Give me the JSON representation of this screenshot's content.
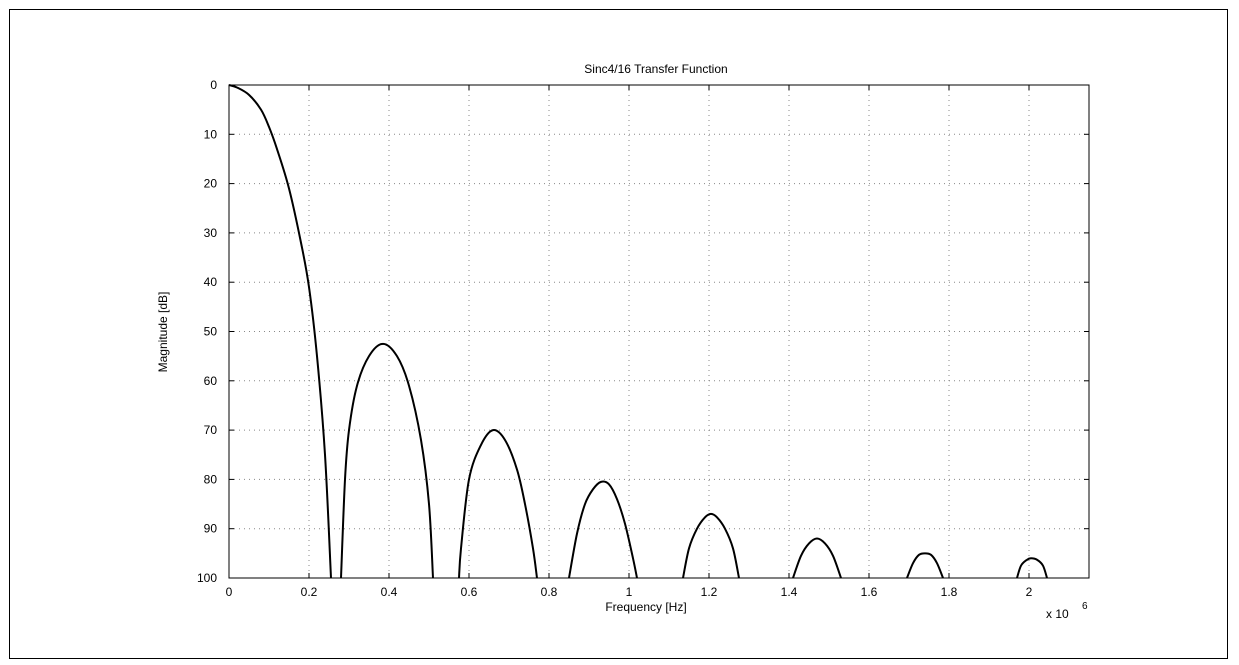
{
  "chart_data": {
    "type": "line",
    "title": "Sinc4/16 Transfer Function",
    "xlabel": "Frequency [Hz]",
    "ylabel": "Magnitude [dB]",
    "x_multiplier": "x 10",
    "x_multiplier_exponent": "6",
    "xlim": [
      0,
      2.15
    ],
    "ylim": [
      0,
      100
    ],
    "y_inverted": true,
    "grid": true,
    "x_ticks": [
      0,
      0.2,
      0.4,
      0.6,
      0.8,
      1,
      1.2,
      1.4,
      1.6,
      1.8,
      2
    ],
    "x_tick_labels": [
      "0",
      "0.2",
      "0.4",
      "0.6",
      "0.8",
      "1",
      "1.2",
      "1.4",
      "1.6",
      "1.8",
      "2"
    ],
    "y_ticks": [
      0,
      10,
      20,
      30,
      40,
      50,
      60,
      70,
      80,
      90,
      100
    ],
    "y_tick_labels": [
      "0",
      "10",
      "20",
      "30",
      "40",
      "50",
      "60",
      "70",
      "80",
      "90",
      "100"
    ],
    "lobes": [
      {
        "x": [
          0,
          0.02,
          0.05,
          0.08,
          0.1,
          0.12,
          0.15,
          0.18,
          0.2,
          0.22,
          0.24,
          0.255
        ],
        "y": [
          0,
          0.5,
          2,
          5,
          8.5,
          13,
          21,
          32,
          41,
          55,
          75,
          100
        ]
      },
      {
        "x": [
          0.28,
          0.29,
          0.3,
          0.32,
          0.35,
          0.385,
          0.42,
          0.45,
          0.48,
          0.5,
          0.51
        ],
        "y": [
          100,
          80,
          70,
          61,
          55,
          52.5,
          55,
          61,
          72,
          85,
          100
        ]
      },
      {
        "x": [
          0.575,
          0.58,
          0.6,
          0.63,
          0.66,
          0.69,
          0.72,
          0.74,
          0.76,
          0.77
        ],
        "y": [
          100,
          94,
          80,
          73,
          70,
          72,
          78,
          85,
          94,
          100
        ]
      },
      {
        "x": [
          0.85,
          0.87,
          0.89,
          0.91,
          0.93,
          0.95,
          0.97,
          0.99,
          1.01,
          1.02
        ],
        "y": [
          100,
          91,
          85,
          82,
          80.5,
          81,
          84,
          89,
          96,
          100
        ]
      },
      {
        "x": [
          1.135,
          1.15,
          1.17,
          1.19,
          1.205,
          1.22,
          1.24,
          1.26,
          1.275
        ],
        "y": [
          100,
          94,
          90,
          87.7,
          87,
          87.7,
          90,
          94,
          100
        ]
      },
      {
        "x": [
          1.41,
          1.43,
          1.45,
          1.47,
          1.49,
          1.51,
          1.53
        ],
        "y": [
          100,
          95.5,
          93,
          92,
          93,
          95.5,
          100
        ]
      },
      {
        "x": [
          1.695,
          1.71,
          1.725,
          1.74,
          1.755,
          1.77,
          1.785
        ],
        "y": [
          100,
          97,
          95.3,
          95,
          95.3,
          97,
          100
        ]
      },
      {
        "x": [
          1.97,
          1.98,
          1.995,
          2.005,
          2.02,
          2.035,
          2.045
        ],
        "y": [
          100,
          97.5,
          96.3,
          96,
          96.3,
          97.5,
          100
        ]
      }
    ]
  }
}
